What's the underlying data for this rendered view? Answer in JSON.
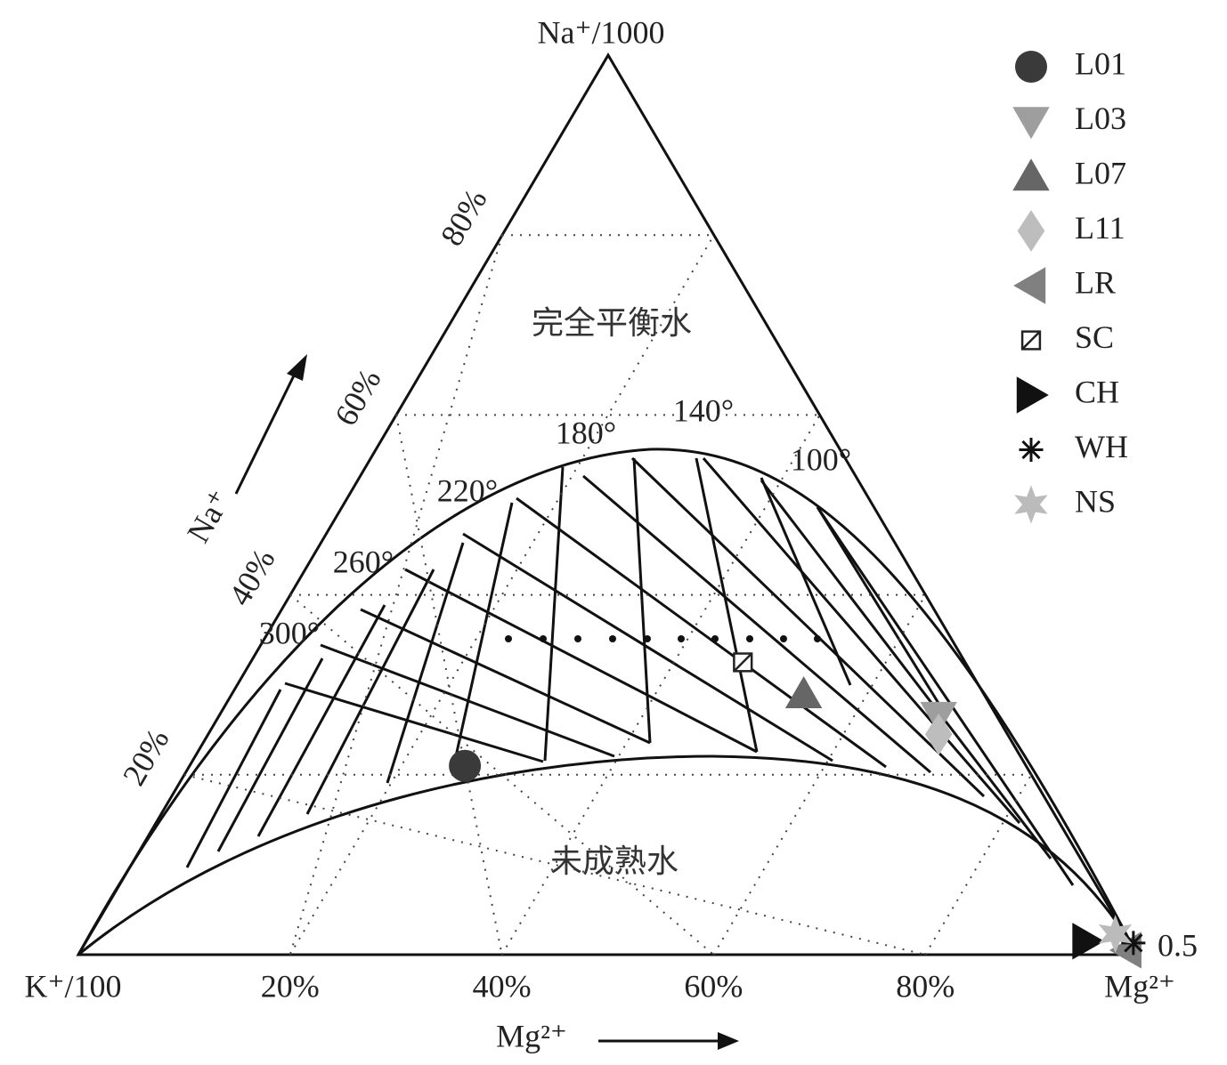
{
  "chart_data": {
    "type": "ternary",
    "top_label": "Na⁺/1000",
    "left_label": "K⁺/100",
    "right_label": "Mg²⁺",
    "left_axis_label": "Na⁺",
    "bottom_axis_label": "Mg²⁺",
    "bottom_ticks": [
      {
        "value": 20,
        "label": "20%"
      },
      {
        "value": 40,
        "label": "40%"
      },
      {
        "value": 60,
        "label": "60%"
      },
      {
        "value": 80,
        "label": "80%"
      }
    ],
    "left_ticks": [
      {
        "value": 20,
        "label": "20%"
      },
      {
        "value": 40,
        "label": "40%"
      },
      {
        "value": 60,
        "label": "60%"
      },
      {
        "value": 80,
        "label": "80%"
      }
    ],
    "regions": [
      "完全平衡水",
      "未成熟水"
    ],
    "isotherm_labels": [
      "100°",
      "140°",
      "180°",
      "220°",
      "260°",
      "300°"
    ],
    "corner_annotation": "0.5",
    "grid": true,
    "series": [
      {
        "name": "L01",
        "marker": "circle",
        "color": "#3a3a3a",
        "na": [
          21
        ],
        "mg": [
          26
        ]
      },
      {
        "name": "L03",
        "marker": "triangle-down",
        "color": "#9e9e9e",
        "na": [
          26.5
        ],
        "mg": [
          68
        ]
      },
      {
        "name": "L07",
        "marker": "triangle-up",
        "color": "#666666",
        "na": [
          29
        ],
        "mg": [
          54
        ]
      },
      {
        "name": "L11",
        "marker": "diamond",
        "color": "#bdbdbd",
        "na": [
          24.5
        ],
        "mg": [
          69
        ]
      },
      {
        "name": "LR",
        "marker": "triangle-left",
        "color": "#808080",
        "na": [
          0.5
        ],
        "mg": [
          98.8
        ]
      },
      {
        "name": "SC",
        "marker": "square-slash",
        "color": "#222222",
        "na": [
          32.5
        ],
        "mg": [
          46.5
        ]
      },
      {
        "name": "CH",
        "marker": "triangle-right",
        "color": "#111111",
        "na": [
          1.5
        ],
        "mg": [
          94.5
        ]
      },
      {
        "name": "WH",
        "marker": "asterisk",
        "color": "#111111",
        "na": [
          1.3
        ],
        "mg": [
          99
        ]
      },
      {
        "name": "NS",
        "marker": "star",
        "color": "#bbbbbb",
        "na": [
          2.3
        ],
        "mg": [
          96.8
        ]
      }
    ]
  }
}
